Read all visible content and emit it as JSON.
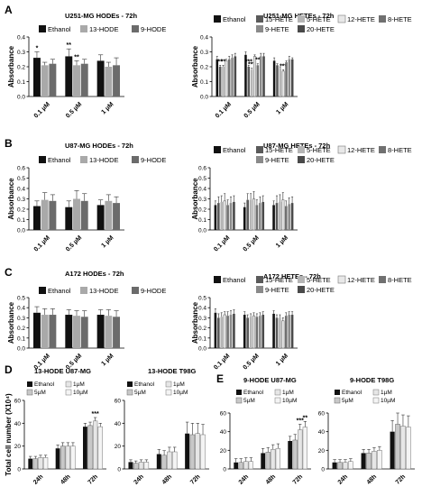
{
  "colors": {
    "ethanol": "#111111",
    "hode13": "#a9a9a9",
    "hode9": "#6b6b6b",
    "axis": "#000000",
    "error": "#333333"
  },
  "panel_letters": [
    "A",
    "B",
    "C",
    "D",
    "E"
  ],
  "chart_data": [
    {
      "id": "A-hode",
      "type": "bar",
      "title": "U251-MG HODEs - 72h",
      "ylabel": "Absorbance",
      "ylim": [
        0,
        0.4
      ],
      "yticks": [
        "0.0",
        "0.1",
        "0.2",
        "0.3",
        "0.4"
      ],
      "categories": [
        "0.1 µM",
        "0.5 µM",
        "1 µM"
      ],
      "series": [
        {
          "name": "Ethanol",
          "values": [
            0.26,
            0.27,
            0.24
          ],
          "err": [
            0.04,
            0.05,
            0.04
          ]
        },
        {
          "name": "13-HODE",
          "values": [
            0.21,
            0.21,
            0.2
          ],
          "err": [
            0.02,
            0.03,
            0.03
          ]
        },
        {
          "name": "9-HODE",
          "values": [
            0.22,
            0.22,
            0.21
          ],
          "err": [
            0.03,
            0.03,
            0.05
          ]
        }
      ],
      "annotations": [
        [
          "*",
          "",
          ""
        ],
        [
          "**",
          "**",
          ""
        ],
        [
          "",
          "",
          ""
        ]
      ]
    },
    {
      "id": "A-hete",
      "type": "bar",
      "title": "U251-MG HETEs - 72h",
      "ylabel": "Absorbance",
      "ylim": [
        0,
        0.4
      ],
      "yticks": [
        "0.0",
        "0.1",
        "0.2",
        "0.3",
        "0.4"
      ],
      "categories": [
        "0.1 µM",
        "0.5 µM",
        "1 µM"
      ],
      "series": [
        {
          "name": "Ethanol",
          "values": [
            0.25,
            0.28,
            0.24
          ],
          "err": [
            0.02,
            0.02,
            0.02
          ]
        },
        {
          "name": "15-HETE",
          "values": [
            0.2,
            0.2,
            0.21
          ],
          "err": [
            0.01,
            0.01,
            0.01
          ]
        },
        {
          "name": "5-HETE",
          "values": [
            0.2,
            0.18,
            0.19
          ],
          "err": [
            0.01,
            0.01,
            0.01
          ]
        },
        {
          "name": "12-HETE",
          "values": [
            0.24,
            0.27,
            0.17
          ],
          "err": [
            0.01,
            0.01,
            0.01
          ]
        },
        {
          "name": "8-HETE",
          "values": [
            0.25,
            0.21,
            0.23
          ],
          "err": [
            0.02,
            0.01,
            0.01
          ]
        },
        {
          "name": "9-HETE",
          "values": [
            0.26,
            0.27,
            0.25
          ],
          "err": [
            0.02,
            0.02,
            0.02
          ]
        },
        {
          "name": "20-HETE",
          "values": [
            0.27,
            0.27,
            0.25
          ],
          "err": [
            0.02,
            0.02,
            0.01
          ]
        }
      ],
      "annotations": [
        [
          "",
          "**",
          "**",
          "",
          "",
          "",
          ""
        ],
        [
          "",
          "***",
          "***",
          "",
          "**",
          "",
          ""
        ],
        [
          "",
          "",
          "",
          "***",
          "",
          "",
          ""
        ]
      ]
    },
    {
      "id": "B-hode",
      "type": "bar",
      "title": "U87-MG HODEs - 72h",
      "ylabel": "Absorbance",
      "ylim": [
        0,
        0.6
      ],
      "yticks": [
        "0.0",
        "0.1",
        "0.2",
        "0.3",
        "0.4",
        "0.5",
        "0.6"
      ],
      "categories": [
        "0.1 µM",
        "0.5 µM",
        "1 µM"
      ],
      "series": [
        {
          "name": "Ethanol",
          "values": [
            0.23,
            0.22,
            0.24
          ],
          "err": [
            0.05,
            0.06,
            0.05
          ]
        },
        {
          "name": "13-HODE",
          "values": [
            0.29,
            0.3,
            0.28
          ],
          "err": [
            0.07,
            0.08,
            0.06
          ]
        },
        {
          "name": "9-HODE",
          "values": [
            0.28,
            0.28,
            0.26
          ],
          "err": [
            0.06,
            0.07,
            0.06
          ]
        }
      ]
    },
    {
      "id": "B-hete",
      "type": "bar",
      "title": "U87-MG HETEs - 72h",
      "ylabel": "Absorbance",
      "ylim": [
        0,
        0.6
      ],
      "yticks": [
        "0.0",
        "0.1",
        "0.2",
        "0.3",
        "0.4",
        "0.5",
        "0.6"
      ],
      "categories": [
        "0.1 µM",
        "0.5 µM",
        "1 µM"
      ],
      "series": [
        {
          "name": "Ethanol",
          "values": [
            0.24,
            0.22,
            0.24
          ],
          "err": [
            0.04,
            0.04,
            0.04
          ]
        },
        {
          "name": "15-HETE",
          "values": [
            0.26,
            0.29,
            0.26
          ],
          "err": [
            0.06,
            0.06,
            0.07
          ]
        },
        {
          "name": "5-HETE",
          "values": [
            0.27,
            0.29,
            0.27
          ],
          "err": [
            0.06,
            0.06,
            0.07
          ]
        },
        {
          "name": "12-HETE",
          "values": [
            0.28,
            0.3,
            0.29
          ],
          "err": [
            0.07,
            0.07,
            0.07
          ]
        },
        {
          "name": "8-HETE",
          "values": [
            0.24,
            0.24,
            0.23
          ],
          "err": [
            0.05,
            0.05,
            0.05
          ]
        },
        {
          "name": "9-HETE",
          "values": [
            0.26,
            0.26,
            0.25
          ],
          "err": [
            0.06,
            0.06,
            0.06
          ]
        },
        {
          "name": "20-HETE",
          "values": [
            0.27,
            0.27,
            0.26
          ],
          "err": [
            0.06,
            0.06,
            0.06
          ]
        }
      ]
    },
    {
      "id": "C-hode",
      "type": "bar",
      "title": "A172 HODEs - 72h",
      "ylabel": "Absorbance",
      "ylim": [
        0,
        0.5
      ],
      "yticks": [
        "0.0",
        "0.1",
        "0.2",
        "0.3",
        "0.4",
        "0.5"
      ],
      "categories": [
        "0.1 µM",
        "0.5 µM",
        "1 µM"
      ],
      "series": [
        {
          "name": "Ethanol",
          "values": [
            0.35,
            0.33,
            0.33
          ],
          "err": [
            0.06,
            0.05,
            0.05
          ]
        },
        {
          "name": "13-HODE",
          "values": [
            0.33,
            0.32,
            0.32
          ],
          "err": [
            0.06,
            0.05,
            0.06
          ]
        },
        {
          "name": "9-HODE",
          "values": [
            0.33,
            0.31,
            0.31
          ],
          "err": [
            0.06,
            0.06,
            0.06
          ]
        }
      ]
    },
    {
      "id": "C-hete",
      "type": "bar",
      "title": "A172 HETEs - 72h",
      "ylabel": "Absorbance",
      "ylim": [
        0,
        0.5
      ],
      "yticks": [
        "0.0",
        "0.1",
        "0.2",
        "0.3",
        "0.4",
        "0.5"
      ],
      "categories": [
        "0.1 µM",
        "0.5 µM",
        "1 µM"
      ],
      "series": [
        {
          "name": "Ethanol",
          "values": [
            0.35,
            0.33,
            0.34
          ],
          "err": [
            0.04,
            0.03,
            0.03
          ]
        },
        {
          "name": "15-HETE",
          "values": [
            0.3,
            0.3,
            0.3
          ],
          "err": [
            0.04,
            0.03,
            0.03
          ]
        },
        {
          "name": "5-HETE",
          "values": [
            0.31,
            0.31,
            0.3
          ],
          "err": [
            0.04,
            0.03,
            0.03
          ]
        },
        {
          "name": "12-HETE",
          "values": [
            0.33,
            0.32,
            0.27
          ],
          "err": [
            0.03,
            0.03,
            0.03
          ]
        },
        {
          "name": "8-HETE",
          "values": [
            0.32,
            0.31,
            0.32
          ],
          "err": [
            0.04,
            0.03,
            0.03
          ]
        },
        {
          "name": "9-HETE",
          "values": [
            0.33,
            0.32,
            0.33
          ],
          "err": [
            0.04,
            0.03,
            0.03
          ]
        },
        {
          "name": "20-HETE",
          "values": [
            0.34,
            0.33,
            0.33
          ],
          "err": [
            0.04,
            0.03,
            0.03
          ]
        }
      ]
    },
    {
      "id": "D1",
      "type": "bar",
      "title": "13-HODE U87-MG",
      "ylabel": "Total cell number (X10⁴)",
      "ylim": [
        0,
        60
      ],
      "yticks": [
        "0",
        "20",
        "40",
        "60"
      ],
      "categories": [
        "24h",
        "48h",
        "72h"
      ],
      "series": [
        {
          "name": "Ethanol",
          "values": [
            9,
            18,
            37
          ],
          "err": [
            2,
            3,
            3
          ]
        },
        {
          "name": "5µM",
          "values": [
            9,
            20,
            38
          ],
          "err": [
            2,
            3,
            3
          ]
        },
        {
          "name": "1µM",
          "values": [
            10,
            20,
            42
          ],
          "err": [
            2,
            3,
            3
          ]
        },
        {
          "name": "10µM",
          "values": [
            10,
            20,
            37
          ],
          "err": [
            2,
            3,
            3
          ]
        }
      ],
      "annotations": [
        [
          "",
          "",
          "",
          ""
        ],
        [
          "",
          "",
          "",
          ""
        ],
        [
          "",
          "",
          "***",
          ""
        ]
      ]
    },
    {
      "id": "D2",
      "type": "bar",
      "title": "13-HODE T98G",
      "ylim": [
        0,
        60
      ],
      "yticks": [
        "0",
        "20",
        "40",
        "60"
      ],
      "categories": [
        "24h",
        "48h",
        "72h"
      ],
      "series": [
        {
          "name": "Ethanol",
          "values": [
            6,
            13,
            31
          ],
          "err": [
            2,
            4,
            10
          ]
        },
        {
          "name": "5µM",
          "values": [
            5,
            12,
            30
          ],
          "err": [
            2,
            4,
            10
          ]
        },
        {
          "name": "1µM",
          "values": [
            6,
            15,
            31
          ],
          "err": [
            2,
            4,
            9
          ]
        },
        {
          "name": "10µM",
          "values": [
            6,
            15,
            30
          ],
          "err": [
            2,
            4,
            9
          ]
        }
      ]
    },
    {
      "id": "E1",
      "type": "bar",
      "title": "9-HODE U87-MG",
      "ylim": [
        0,
        60
      ],
      "yticks": [
        "0",
        "20",
        "40",
        "60"
      ],
      "categories": [
        "24h",
        "48h",
        "72h"
      ],
      "series": [
        {
          "name": "Ethanol",
          "values": [
            7,
            17,
            30
          ],
          "err": [
            4,
            5,
            5
          ]
        },
        {
          "name": "5µM",
          "values": [
            7,
            18,
            31
          ],
          "err": [
            4,
            5,
            6
          ]
        },
        {
          "name": "1µM",
          "values": [
            8,
            21,
            42
          ],
          "err": [
            4,
            5,
            6
          ]
        },
        {
          "name": "10µM",
          "values": [
            8,
            22,
            45
          ],
          "err": [
            4,
            5,
            6
          ]
        }
      ],
      "annotations": [
        [
          "",
          "",
          "",
          ""
        ],
        [
          "",
          "",
          "",
          ""
        ],
        [
          "",
          "",
          "***",
          "**"
        ]
      ]
    },
    {
      "id": "E2",
      "type": "bar",
      "title": "9-HODE T98G",
      "ylim": [
        0,
        60
      ],
      "yticks": [
        "0",
        "20",
        "40",
        "60"
      ],
      "categories": [
        "24h",
        "48h",
        "72h"
      ],
      "series": [
        {
          "name": "Ethanol",
          "values": [
            7,
            17,
            40
          ],
          "err": [
            3,
            4,
            12
          ]
        },
        {
          "name": "5µM",
          "values": [
            7,
            17,
            48
          ],
          "err": [
            3,
            4,
            12
          ]
        },
        {
          "name": "1µM",
          "values": [
            7,
            19,
            46
          ],
          "err": [
            3,
            4,
            12
          ]
        },
        {
          "name": "10µM",
          "values": [
            8,
            20,
            45
          ],
          "err": [
            3,
            4,
            12
          ]
        }
      ]
    }
  ]
}
